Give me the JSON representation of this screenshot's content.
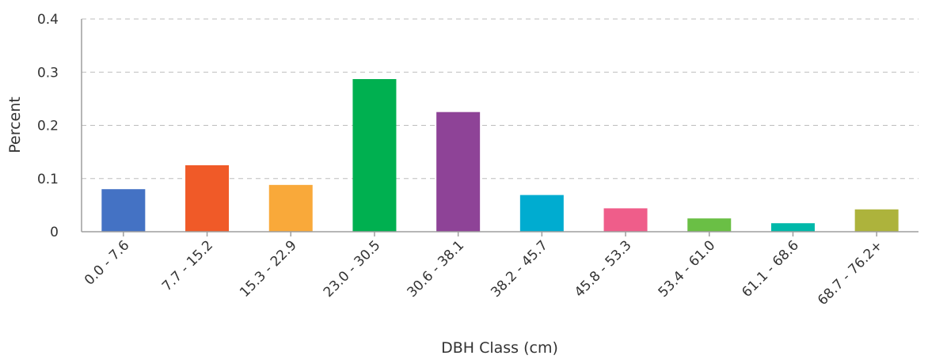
{
  "chart_data": {
    "type": "bar",
    "title": "",
    "xlabel": "DBH Class (cm)",
    "ylabel": "Percent",
    "ylim": [
      0,
      0.4
    ],
    "yticks": [
      "0",
      "0.1",
      "0.2",
      "0.3",
      "0.4"
    ],
    "grid": true,
    "legend": "none",
    "categories": [
      "0.0 - 7.6",
      "7.7 - 15.2",
      "15.3 - 22.9",
      "23.0 - 30.5",
      "30.6 - 38.1",
      "38.2 - 45.7",
      "45.8 - 53.3",
      "53.4 - 61.0",
      "61.1 - 68.6",
      "68.7 - 76.2+"
    ],
    "values": [
      0.08,
      0.125,
      0.088,
      0.287,
      0.225,
      0.069,
      0.044,
      0.025,
      0.016,
      0.042
    ],
    "colors": [
      "#4472c4",
      "#f05a28",
      "#f9a93a",
      "#00b050",
      "#8e4397",
      "#00acd0",
      "#ef5d8a",
      "#6abf45",
      "#00b8a9",
      "#adb33c"
    ]
  }
}
